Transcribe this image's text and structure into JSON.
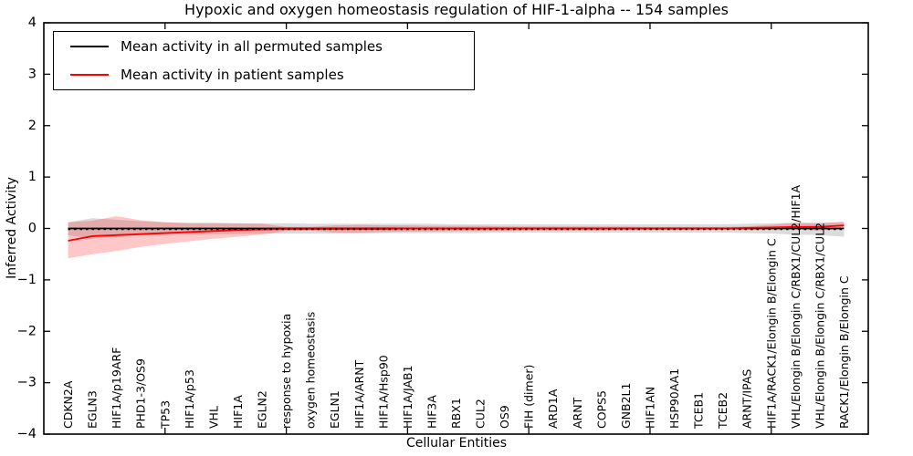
{
  "figure": {
    "title": "Hypoxic and oxygen homeostasis regulation of HIF-1-alpha -- 154 samples",
    "xlabel": "Cellular Entities",
    "ylabel": "Inferred Activity"
  },
  "legend": {
    "entries": [
      {
        "label": "Mean activity in all permuted samples",
        "color": "#000000"
      },
      {
        "label": "Mean activity in patient samples",
        "color": "#ff0000"
      }
    ]
  },
  "chart_data": {
    "type": "line",
    "title": "Hypoxic and oxygen homeostasis regulation of HIF-1-alpha -- 154 samples",
    "xlabel": "Cellular Entities",
    "ylabel": "Inferred Activity",
    "ylim": [
      -4,
      4
    ],
    "yticks": [
      -4,
      -3,
      -2,
      -1,
      0,
      1,
      2,
      3,
      4
    ],
    "xlim": [
      0,
      34
    ],
    "xticks_major": [
      5,
      10,
      15,
      20,
      25,
      30
    ],
    "grid": false,
    "legend_position": "upper left",
    "zero_line": {
      "style": "dashed",
      "color": "#000000",
      "y": 0
    },
    "categories": [
      "CDKN2A",
      "EGLN3",
      "HIF1A/p19ARF",
      "PHD1-3/OS9",
      "TP53",
      "HIF1A/p53",
      "VHL",
      "HIF1A",
      "EGLN2",
      "response to hypoxia",
      "oxygen homeostasis",
      "EGLN1",
      "HIF1A/ARNT",
      "HIF1A/Hsp90",
      "HIF1A/JAB1",
      "HIF3A",
      "RBX1",
      "CUL2",
      "OS9",
      "FIH (dimer)",
      "ARD1A",
      "ARNT",
      "COPS5",
      "GNB2L1",
      "HIF1AN",
      "HSP90AA1",
      "TCEB1",
      "TCEB2",
      "ARNT/IPAS",
      "HIF1A/RACK1/Elongin B/Elongin C",
      "VHL/Elongin B/Elongin C/RBX1/CUL2/HIF1A",
      "VHL/Elongin B/Elongin C/RBX1/CUL2",
      "RACK1/Elongin B/Elongin C"
    ],
    "series": [
      {
        "name": "Mean activity in all permuted samples",
        "color": "#000000",
        "band_color": "#999999",
        "band_opacity": 0.35,
        "values": [
          0,
          0,
          0,
          0,
          0,
          0,
          0,
          0,
          0,
          0,
          0,
          0,
          0,
          0,
          0,
          0,
          0,
          0,
          0,
          0,
          0,
          0,
          0,
          0,
          0,
          0,
          0,
          0,
          0,
          0,
          0,
          0,
          0
        ],
        "band_low": [
          -0.13,
          -0.2,
          -0.16,
          -0.13,
          -0.12,
          -0.12,
          -0.11,
          -0.11,
          -0.1,
          -0.1,
          -0.1,
          -0.1,
          -0.1,
          -0.09,
          -0.09,
          -0.09,
          -0.09,
          -0.09,
          -0.08,
          -0.08,
          -0.08,
          -0.08,
          -0.08,
          -0.08,
          -0.08,
          -0.08,
          -0.08,
          -0.08,
          -0.09,
          -0.1,
          -0.12,
          -0.13,
          -0.16
        ],
        "band_high": [
          0.12,
          0.2,
          0.17,
          0.14,
          0.12,
          0.11,
          0.11,
          0.1,
          0.1,
          0.1,
          0.09,
          0.09,
          0.09,
          0.09,
          0.09,
          0.09,
          0.08,
          0.08,
          0.08,
          0.08,
          0.08,
          0.08,
          0.08,
          0.08,
          0.08,
          0.08,
          0.08,
          0.08,
          0.09,
          0.1,
          0.11,
          0.12,
          0.11
        ]
      },
      {
        "name": "Mean activity in patient samples",
        "color": "#ff0000",
        "band_color": "#ff0000",
        "band_opacity": 0.22,
        "values": [
          -0.24,
          -0.15,
          -0.13,
          -0.11,
          -0.09,
          -0.07,
          -0.05,
          -0.03,
          -0.02,
          -0.01,
          -0.01,
          -0.01,
          -0.01,
          -0.01,
          0,
          0,
          0,
          0,
          0,
          0,
          0,
          0,
          0,
          0,
          0,
          0,
          0,
          0,
          0.01,
          0.02,
          0.03,
          0.03,
          0.06
        ],
        "band_low": [
          -0.58,
          -0.5,
          -0.44,
          -0.36,
          -0.3,
          -0.25,
          -0.2,
          -0.16,
          -0.12,
          -0.05,
          -0.04,
          -0.08,
          -0.08,
          -0.07,
          -0.06,
          -0.06,
          -0.05,
          -0.05,
          -0.05,
          -0.04,
          -0.04,
          -0.04,
          -0.04,
          -0.03,
          -0.03,
          -0.03,
          -0.03,
          -0.02,
          -0.02,
          -0.02,
          -0.01,
          -0.04,
          -0.01
        ],
        "band_high": [
          0.12,
          0.15,
          0.24,
          0.16,
          0.12,
          0.1,
          0.1,
          0.1,
          0.09,
          0.03,
          0.03,
          0.06,
          0.07,
          0.06,
          0.06,
          0.05,
          0.05,
          0.05,
          0.04,
          0.04,
          0.04,
          0.04,
          0.04,
          0.04,
          0.03,
          0.03,
          0.03,
          0.03,
          0.04,
          0.07,
          0.11,
          0.09,
          0.14
        ]
      }
    ]
  }
}
